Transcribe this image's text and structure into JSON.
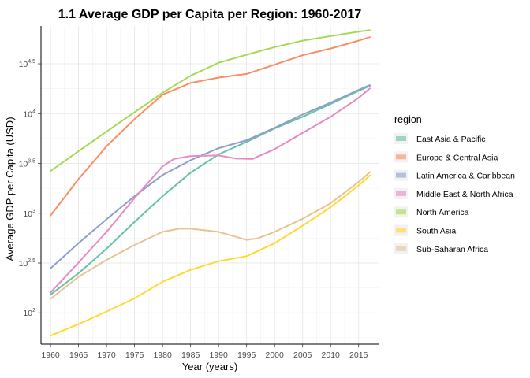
{
  "chart_data": {
    "type": "line",
    "title": "1.1 Average GDP per Capita per Region: 1960-2017",
    "xlabel": "Year (years)",
    "ylabel": "Average GDP per Capita (USD)",
    "y_scale": "log10",
    "xlim": [
      1958.3,
      2018.7
    ],
    "ylim": [
      48.5,
      75800
    ],
    "x_ticks": [
      1960,
      1965,
      1970,
      1975,
      1980,
      1985,
      1990,
      1995,
      2000,
      2005,
      2010,
      2015
    ],
    "x_tick_labels": [
      "1960",
      "1965",
      "1970",
      "1975",
      "1980",
      "1985",
      "1990",
      "1995",
      "2000",
      "2005",
      "2010",
      "2015"
    ],
    "y_ticks": [
      {
        "value": 100,
        "base": "10",
        "exp": "2"
      },
      {
        "value": 316.23,
        "base": "10",
        "exp": "2.5"
      },
      {
        "value": 1000,
        "base": "10",
        "exp": "3"
      },
      {
        "value": 3162.28,
        "base": "10",
        "exp": "3.5"
      },
      {
        "value": 10000,
        "base": "10",
        "exp": "4"
      },
      {
        "value": 31622.78,
        "base": "10",
        "exp": "4.5"
      }
    ],
    "grid": true,
    "legend": {
      "title": "region",
      "position": "right"
    },
    "series": [
      {
        "name": "East Asia & Pacific",
        "color": "#66c2a5",
        "x": [
          1960,
          1965,
          1970,
          1975,
          1980,
          1985,
          1990,
          1995,
          2000,
          2005,
          2010,
          2015,
          2017
        ],
        "y": [
          152,
          250,
          440,
          820,
          1480,
          2550,
          3900,
          5200,
          7100,
          9300,
          12500,
          16900,
          19000
        ]
      },
      {
        "name": "Europe & Central Asia",
        "color": "#fc8d62",
        "x": [
          1960,
          1965,
          1970,
          1975,
          1980,
          1985,
          1990,
          1995,
          2000,
          2005,
          2010,
          2015,
          2017
        ],
        "y": [
          950,
          2200,
          4700,
          8800,
          15500,
          20300,
          23000,
          25000,
          31000,
          38500,
          45000,
          54000,
          58500
        ]
      },
      {
        "name": "Latin America & Caribbean",
        "color": "#8da0cb",
        "x": [
          1960,
          1965,
          1970,
          1975,
          1980,
          1985,
          1990,
          1995,
          2000,
          2005,
          2010,
          2015,
          2017
        ],
        "y": [
          280,
          500,
          870,
          1480,
          2420,
          3400,
          4500,
          5400,
          7200,
          9800,
          12900,
          17300,
          19300
        ]
      },
      {
        "name": "Middle East & North Africa",
        "color": "#e78ac3",
        "x": [
          1960,
          1965,
          1970,
          1975,
          1980,
          1982,
          1985,
          1990,
          1993,
          1996,
          2000,
          2005,
          2010,
          2015,
          2017
        ],
        "y": [
          160,
          320,
          650,
          1420,
          2950,
          3500,
          3750,
          3800,
          3550,
          3500,
          4400,
          6400,
          9300,
          14400,
          17900
        ]
      },
      {
        "name": "North America",
        "color": "#a6d854",
        "x": [
          1960,
          1965,
          1970,
          1975,
          1980,
          1985,
          1990,
          1995,
          2000,
          2005,
          2010,
          2015,
          2017
        ],
        "y": [
          2650,
          4200,
          6600,
          10300,
          16200,
          24000,
          32400,
          39000,
          46500,
          54000,
          60000,
          66500,
          69000
        ]
      },
      {
        "name": "South Asia",
        "color": "#ffd92f",
        "x": [
          1960,
          1965,
          1970,
          1975,
          1980,
          1985,
          1990,
          1995,
          2000,
          2005,
          2010,
          2015,
          2017
        ],
        "y": [
          59,
          77,
          103,
          140,
          205,
          270,
          330,
          370,
          500,
          750,
          1150,
          1900,
          2400
        ]
      },
      {
        "name": "Sub-Saharan Africa",
        "color": "#e5c494",
        "x": [
          1960,
          1965,
          1970,
          1975,
          1980,
          1983,
          1985,
          1990,
          1995,
          1997,
          2000,
          2005,
          2010,
          2015,
          2017
        ],
        "y": [
          138,
          230,
          340,
          480,
          650,
          700,
          700,
          650,
          540,
          560,
          650,
          880,
          1260,
          2060,
          2580
        ]
      }
    ]
  }
}
